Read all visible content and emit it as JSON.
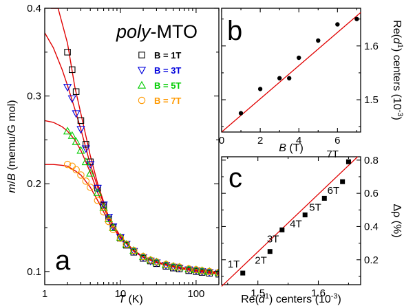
{
  "chart_data": [
    {
      "id": "a",
      "type": "scatter",
      "panel_label": "a",
      "title": "poly-MTO",
      "xlabel": "T (K)",
      "ylabel": "m/B (memu/G mol)",
      "xscale": "log",
      "xlim": [
        1,
        200
      ],
      "ylim": [
        0.085,
        0.4
      ],
      "x_ticks": [
        "1",
        "10",
        "100"
      ],
      "y_ticks": [
        "0.1",
        "0.2",
        "0.3",
        "0.4"
      ],
      "legend_position": "top-right",
      "series": [
        {
          "name": "B = 1T",
          "marker": "square",
          "color": "#000000",
          "x": [
            2,
            2.3,
            2.6,
            3,
            3.5,
            4,
            5,
            6,
            7,
            8,
            10,
            12,
            15,
            20,
            25,
            30,
            40,
            50,
            60,
            80,
            100,
            120,
            150,
            200
          ],
          "y": [
            0.35,
            0.33,
            0.305,
            0.272,
            0.245,
            0.225,
            0.195,
            0.175,
            0.16,
            0.15,
            0.138,
            0.13,
            0.122,
            0.115,
            0.112,
            0.109,
            0.106,
            0.104,
            0.103,
            0.101,
            0.1,
            0.099,
            0.098,
            0.097
          ]
        },
        {
          "name": "B = 3T",
          "marker": "triangle-down",
          "color": "#0000dd",
          "x": [
            2,
            2.3,
            2.6,
            3,
            3.5,
            4,
            5,
            6,
            7,
            8,
            10,
            12,
            15,
            20,
            25,
            30,
            40,
            50,
            60,
            80,
            100,
            120,
            150,
            200
          ],
          "y": [
            0.31,
            0.297,
            0.28,
            0.262,
            0.24,
            0.222,
            0.195,
            0.176,
            0.162,
            0.151,
            0.139,
            0.131,
            0.123,
            0.116,
            0.112,
            0.11,
            0.107,
            0.105,
            0.104,
            0.102,
            0.101,
            0.1,
            0.099,
            0.098
          ]
        },
        {
          "name": "B = 5T",
          "marker": "triangle-up",
          "color": "#00cc00",
          "x": [
            2,
            2.3,
            2.6,
            3,
            3.5,
            4,
            5,
            6,
            7,
            8,
            10,
            12,
            15,
            20,
            25,
            30,
            40,
            50,
            60,
            80,
            100,
            120,
            150,
            200
          ],
          "y": [
            0.26,
            0.255,
            0.248,
            0.238,
            0.225,
            0.212,
            0.19,
            0.173,
            0.16,
            0.15,
            0.139,
            0.131,
            0.124,
            0.117,
            0.113,
            0.111,
            0.108,
            0.106,
            0.105,
            0.103,
            0.102,
            0.101,
            0.1,
            0.099
          ]
        },
        {
          "name": "B = 7T",
          "marker": "circle",
          "color": "#ff9900",
          "x": [
            2,
            2.3,
            2.6,
            3,
            3.5,
            4,
            5,
            6,
            7,
            8,
            10,
            12,
            15,
            20,
            25,
            30,
            40,
            50,
            60,
            80,
            100,
            120,
            150,
            200
          ],
          "y": [
            0.222,
            0.22,
            0.216,
            0.21,
            0.203,
            0.196,
            0.181,
            0.168,
            0.157,
            0.148,
            0.138,
            0.131,
            0.124,
            0.117,
            0.113,
            0.111,
            0.108,
            0.106,
            0.105,
            0.103,
            0.102,
            0.101,
            0.1,
            0.099
          ]
        }
      ],
      "fits": [
        {
          "color": "#e00000",
          "x": [
            1.2,
            1.5,
            2,
            2.5,
            3,
            4,
            5,
            7,
            10,
            15,
            20,
            30,
            50,
            100,
            200
          ],
          "y": [
            0.4,
            0.4,
            0.36,
            0.31,
            0.28,
            0.232,
            0.2,
            0.162,
            0.139,
            0.123,
            0.116,
            0.11,
            0.105,
            0.1,
            0.097
          ]
        },
        {
          "color": "#e00000",
          "x": [
            1,
            1.3,
            1.7,
            2,
            2.5,
            3,
            4,
            5,
            7,
            10,
            15,
            20,
            30,
            50,
            100,
            200
          ],
          "y": [
            0.372,
            0.355,
            0.33,
            0.312,
            0.285,
            0.262,
            0.222,
            0.196,
            0.162,
            0.14,
            0.124,
            0.117,
            0.111,
            0.106,
            0.101,
            0.098
          ]
        },
        {
          "color": "#e00000",
          "x": [
            1,
            1.3,
            1.7,
            2,
            2.5,
            3,
            4,
            5,
            7,
            10,
            15,
            20,
            30,
            50,
            100,
            200
          ],
          "y": [
            0.272,
            0.27,
            0.265,
            0.26,
            0.25,
            0.238,
            0.213,
            0.19,
            0.16,
            0.14,
            0.124,
            0.117,
            0.111,
            0.106,
            0.102,
            0.099
          ]
        },
        {
          "color": "#e00000",
          "x": [
            1,
            1.3,
            1.7,
            2,
            2.5,
            3,
            4,
            5,
            7,
            10,
            15,
            20,
            30,
            50,
            100,
            200
          ],
          "y": [
            0.222,
            0.222,
            0.221,
            0.22,
            0.215,
            0.21,
            0.196,
            0.181,
            0.157,
            0.138,
            0.124,
            0.117,
            0.111,
            0.106,
            0.102,
            0.099
          ]
        }
      ]
    },
    {
      "id": "b",
      "type": "scatter",
      "panel_label": "b",
      "xlabel": "B (T)",
      "ylabel": "Re(d1) centers (10-3)",
      "xlim": [
        0,
        7.2
      ],
      "ylim": [
        1.44,
        1.67
      ],
      "x_ticks": [
        "0",
        "2",
        "4",
        "6"
      ],
      "y_ticks": [
        "1.5",
        "1.6"
      ],
      "points": {
        "x": [
          1,
          2,
          3,
          3.5,
          4,
          5,
          6,
          7
        ],
        "y": [
          1.475,
          1.52,
          1.54,
          1.54,
          1.578,
          1.61,
          1.64,
          1.65
        ]
      },
      "fit": {
        "x": [
          0,
          7.2
        ],
        "y": [
          1.44,
          1.662
        ],
        "color": "#e00000"
      }
    },
    {
      "id": "c",
      "type": "scatter",
      "panel_label": "c",
      "xlabel": "Re(d1) centers (10-3)",
      "ylabel": "Δρ (%)",
      "xlim": [
        1.44,
        1.67
      ],
      "ylim": [
        0.05,
        0.82
      ],
      "x_ticks": [
        "1.5",
        "1.6"
      ],
      "y_ticks": [
        "0.2",
        "0.4",
        "0.6",
        "0.8"
      ],
      "points": {
        "x": [
          1.475,
          1.52,
          1.54,
          1.578,
          1.61,
          1.64,
          1.65
        ],
        "y": [
          0.12,
          0.25,
          0.38,
          0.47,
          0.57,
          0.67,
          0.79
        ],
        "labels": [
          "1T",
          "2T",
          "3T",
          "4T",
          "5T",
          "6T",
          "7T"
        ]
      },
      "fit": {
        "x": [
          1.44,
          1.665
        ],
        "y": [
          0.04,
          0.82
        ],
        "color": "#e00000"
      }
    }
  ]
}
